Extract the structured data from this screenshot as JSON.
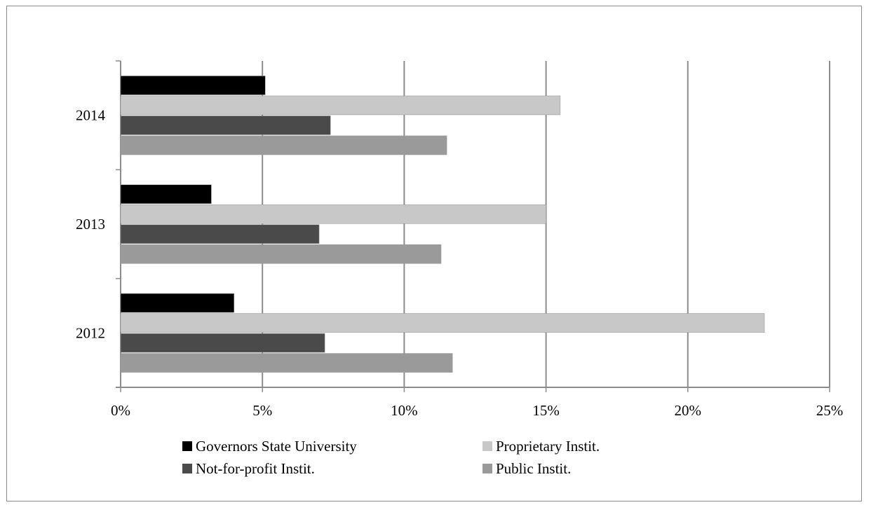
{
  "chart_data": {
    "type": "bar",
    "orientation": "horizontal",
    "title": "",
    "categories": [
      "2012",
      "2013",
      "2014"
    ],
    "series": [
      {
        "name": "Governors State University",
        "color": "#000000",
        "values": [
          4.0,
          3.2,
          5.1
        ]
      },
      {
        "name": "Proprietary Instit.",
        "color": "#c8c8c8",
        "values": [
          22.7,
          15.0,
          15.5
        ]
      },
      {
        "name": "Not-for-profit Instit.",
        "color": "#4a4a4a",
        "values": [
          7.2,
          7.0,
          7.4
        ]
      },
      {
        "name": "Public Instit.",
        "color": "#9a9a9a",
        "values": [
          11.7,
          11.3,
          11.5
        ]
      }
    ],
    "x_ticks": [
      "0%",
      "5%",
      "10%",
      "15%",
      "20%",
      "25%"
    ],
    "xlim": [
      0,
      25
    ],
    "xlabel": "",
    "ylabel": "",
    "grid": "vertical",
    "legend": "bottom"
  }
}
